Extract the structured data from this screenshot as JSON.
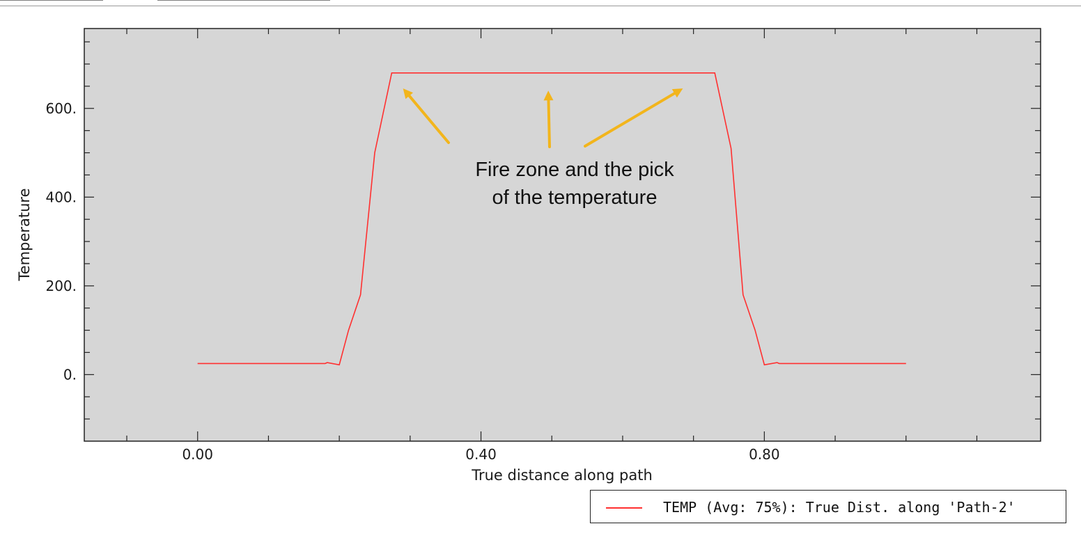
{
  "colors": {
    "plot_background": "#d6d6d6",
    "series": "#ff3030",
    "arrow": "#f2b51c"
  },
  "chart_data": {
    "type": "line",
    "title": "",
    "xlabel": "True distance along path",
    "ylabel": "Temperature",
    "xlim": [
      -0.16,
      1.19
    ],
    "ylim": [
      -150,
      780
    ],
    "x_ticks": [
      0.0,
      0.4,
      0.8
    ],
    "x_tick_labels": [
      "0.00",
      "0.40",
      "0.80"
    ],
    "y_ticks": [
      0,
      200,
      400,
      600
    ],
    "y_tick_labels": [
      "0.",
      "200.",
      "400.",
      "600."
    ],
    "grid": false,
    "legend_position": "bottom-right",
    "series": [
      {
        "name": "TEMP (Avg: 75%): True Dist. along 'Path-2'",
        "x": [
          0.0,
          0.18,
          0.183,
          0.2,
          0.213,
          0.23,
          0.25,
          0.274,
          0.73,
          0.753,
          0.77,
          0.787,
          0.8,
          0.818,
          0.821,
          1.0
        ],
        "values": [
          25,
          25,
          27,
          22,
          100,
          180,
          500,
          680,
          680,
          510,
          180,
          100,
          22,
          27,
          25,
          25
        ]
      }
    ],
    "annotations": [
      {
        "text_lines": [
          "Fire zone and the pick",
          "of the temperature"
        ],
        "arrow_targets": [
          {
            "x": 0.29,
            "y": 645
          },
          {
            "x": 0.495,
            "y": 640
          },
          {
            "x": 0.685,
            "y": 645
          }
        ]
      }
    ]
  }
}
